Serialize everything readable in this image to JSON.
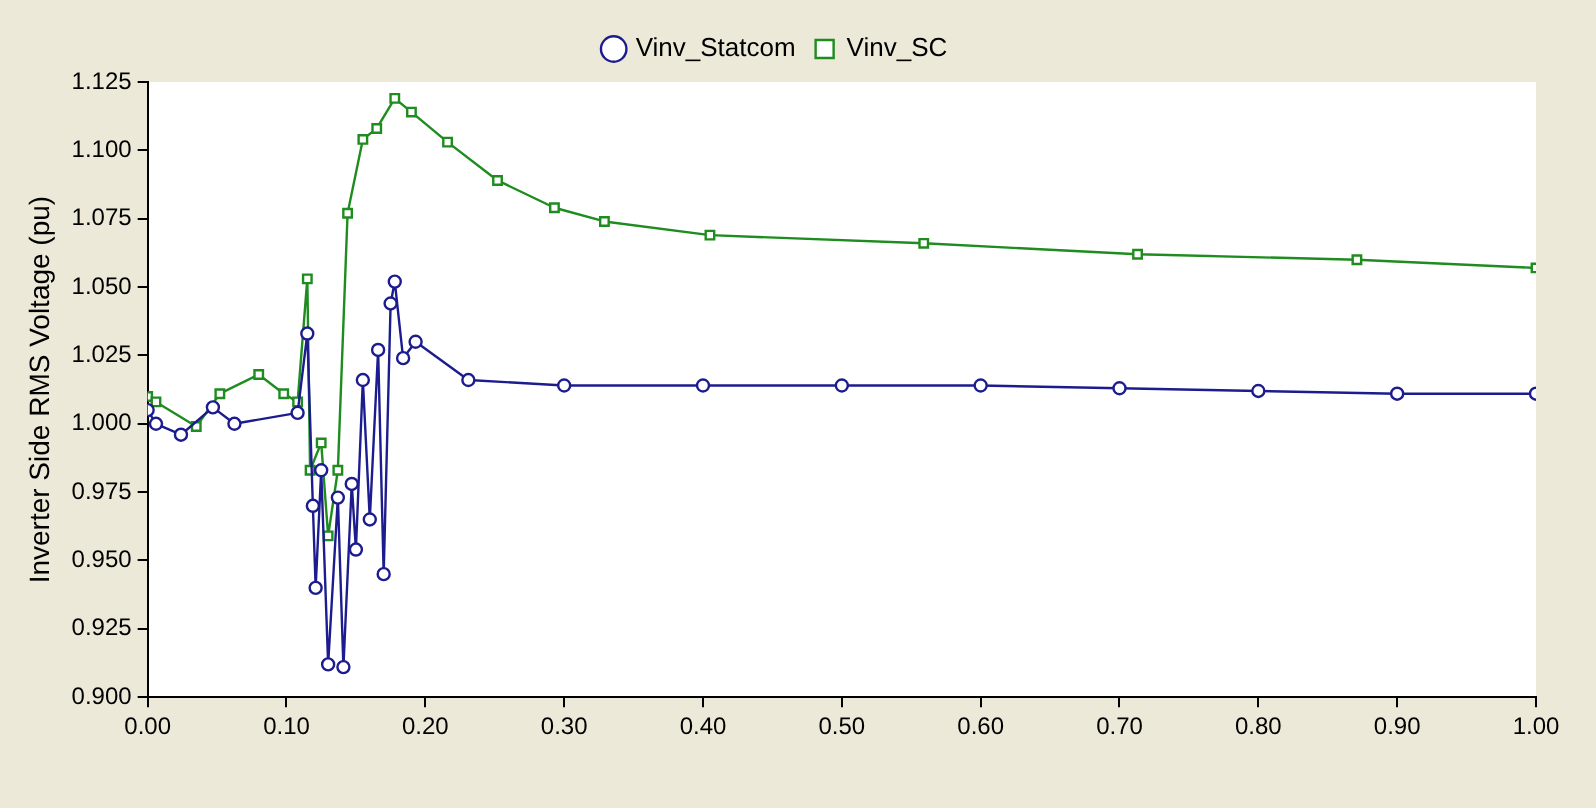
{
  "chart_data": {
    "type": "line",
    "ylabel": "Inverter Side RMS Voltage (pu)",
    "legend": "top",
    "grid": false,
    "xlim": [
      0,
      1
    ],
    "ylim": [
      0.9,
      1.125
    ],
    "xticks": [
      {
        "value": 0,
        "label": "0.00"
      },
      {
        "value": 0.1,
        "label": "0.10"
      },
      {
        "value": 0.2,
        "label": "0.20"
      },
      {
        "value": 0.3,
        "label": "0.30"
      },
      {
        "value": 0.4,
        "label": "0.40"
      },
      {
        "value": 0.5,
        "label": "0.50"
      },
      {
        "value": 0.6,
        "label": "0.60"
      },
      {
        "value": 0.7,
        "label": "0.70"
      },
      {
        "value": 0.8,
        "label": "0.80"
      },
      {
        "value": 0.9,
        "label": "0.90"
      },
      {
        "value": 1,
        "label": "1.00"
      }
    ],
    "yticks": [
      {
        "value": 0.9,
        "label": "0.900"
      },
      {
        "value": 0.925,
        "label": "0.925"
      },
      {
        "value": 0.95,
        "label": "0.950"
      },
      {
        "value": 0.975,
        "label": "0.975"
      },
      {
        "value": 1,
        "label": "1.000"
      },
      {
        "value": 1.025,
        "label": "1.025"
      },
      {
        "value": 1.05,
        "label": "1.050"
      },
      {
        "value": 1.075,
        "label": "1.075"
      },
      {
        "value": 1.1,
        "label": "1.100"
      },
      {
        "value": 1.125,
        "label": "1.125"
      }
    ],
    "series": [
      {
        "name": "Vinv_Statcom",
        "color": "#1c1c8e",
        "marker": "circle",
        "x": [
          0,
          0.006,
          0.024,
          0.047,
          0.0625,
          0.108,
          0.115,
          0.119,
          0.121,
          0.125,
          0.13,
          0.137,
          0.141,
          0.147,
          0.15,
          0.155,
          0.16,
          0.166,
          0.17,
          0.175,
          0.178,
          0.184,
          0.193,
          0.231,
          0.3,
          0.4,
          0.5,
          0.6,
          0.7,
          0.8,
          0.9,
          1
        ],
        "values": [
          1.005,
          1.0,
          0.996,
          1.006,
          1.0,
          1.004,
          1.033,
          0.97,
          0.94,
          0.983,
          0.912,
          0.973,
          0.911,
          0.978,
          0.954,
          1.016,
          0.965,
          1.027,
          0.945,
          1.044,
          1.052,
          1.024,
          1.03,
          1.016,
          1.014,
          1.014,
          1.014,
          1.014,
          1.013,
          1.012,
          1.011,
          1.011
        ]
      },
      {
        "name": "Vinv_SC",
        "color": "#1e8c1e",
        "marker": "square",
        "x": [
          0,
          0.006,
          0.035,
          0.052,
          0.08,
          0.098,
          0.108,
          0.115,
          0.117,
          0.125,
          0.13,
          0.137,
          0.144,
          0.155,
          0.165,
          0.178,
          0.19,
          0.216,
          0.252,
          0.293,
          0.329,
          0.405,
          0.559,
          0.713,
          0.871,
          1
        ],
        "values": [
          1.01,
          1.008,
          0.999,
          1.011,
          1.018,
          1.011,
          1.008,
          1.053,
          0.983,
          0.993,
          0.959,
          0.983,
          1.077,
          1.104,
          1.108,
          1.119,
          1.114,
          1.103,
          1.089,
          1.079,
          1.074,
          1.069,
          1.066,
          1.062,
          1.06,
          1.057
        ]
      }
    ]
  }
}
